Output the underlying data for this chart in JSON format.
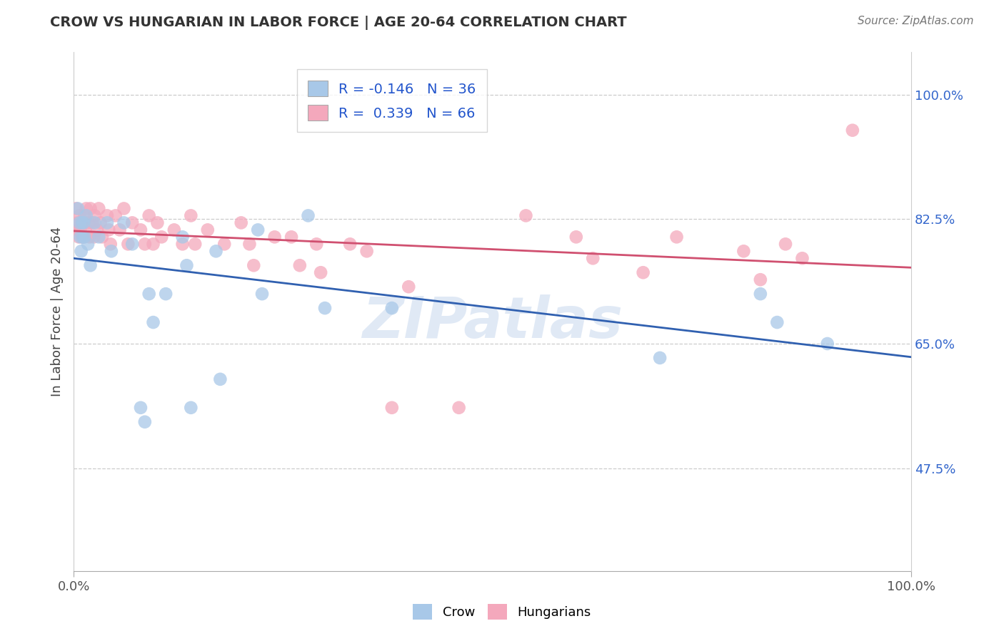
{
  "title": "CROW VS HUNGARIAN IN LABOR FORCE | AGE 20-64 CORRELATION CHART",
  "source": "Source: ZipAtlas.com",
  "ylabel": "In Labor Force | Age 20-64",
  "crow_R": "-0.146",
  "crow_N": "36",
  "hung_R": "0.339",
  "hung_N": "66",
  "crow_color": "#a8c8e8",
  "hung_color": "#f4a8bc",
  "crow_line_color": "#3060b0",
  "hung_line_color": "#d05070",
  "watermark": "ZIPatlas",
  "xlim": [
    0.0,
    1.0
  ],
  "ylim": [
    0.33,
    1.06
  ],
  "ytick_positions": [
    0.475,
    0.65,
    0.825,
    1.0
  ],
  "ytick_labels": [
    "47.5%",
    "65.0%",
    "82.5%",
    "100.0%"
  ],
  "crow_points": [
    [
      0.005,
      0.84
    ],
    [
      0.007,
      0.82
    ],
    [
      0.008,
      0.8
    ],
    [
      0.009,
      0.78
    ],
    [
      0.01,
      0.82
    ],
    [
      0.011,
      0.8
    ],
    [
      0.012,
      0.82
    ],
    [
      0.013,
      0.8
    ],
    [
      0.015,
      0.83
    ],
    [
      0.017,
      0.79
    ],
    [
      0.02,
      0.76
    ],
    [
      0.025,
      0.82
    ],
    [
      0.03,
      0.8
    ],
    [
      0.04,
      0.82
    ],
    [
      0.045,
      0.78
    ],
    [
      0.06,
      0.82
    ],
    [
      0.07,
      0.79
    ],
    [
      0.08,
      0.56
    ],
    [
      0.085,
      0.54
    ],
    [
      0.09,
      0.72
    ],
    [
      0.095,
      0.68
    ],
    [
      0.11,
      0.72
    ],
    [
      0.13,
      0.8
    ],
    [
      0.135,
      0.76
    ],
    [
      0.14,
      0.56
    ],
    [
      0.17,
      0.78
    ],
    [
      0.175,
      0.6
    ],
    [
      0.22,
      0.81
    ],
    [
      0.225,
      0.72
    ],
    [
      0.28,
      0.83
    ],
    [
      0.3,
      0.7
    ],
    [
      0.38,
      0.7
    ],
    [
      0.7,
      0.63
    ],
    [
      0.82,
      0.72
    ],
    [
      0.84,
      0.68
    ],
    [
      0.9,
      0.65
    ]
  ],
  "hung_points": [
    [
      0.003,
      0.84
    ],
    [
      0.004,
      0.82
    ],
    [
      0.005,
      0.81
    ],
    [
      0.006,
      0.8
    ],
    [
      0.007,
      0.83
    ],
    [
      0.008,
      0.81
    ],
    [
      0.009,
      0.82
    ],
    [
      0.01,
      0.8
    ],
    [
      0.011,
      0.82
    ],
    [
      0.012,
      0.8
    ],
    [
      0.013,
      0.83
    ],
    [
      0.014,
      0.81
    ],
    [
      0.015,
      0.84
    ],
    [
      0.017,
      0.82
    ],
    [
      0.019,
      0.8
    ],
    [
      0.02,
      0.84
    ],
    [
      0.022,
      0.82
    ],
    [
      0.024,
      0.8
    ],
    [
      0.025,
      0.83
    ],
    [
      0.028,
      0.81
    ],
    [
      0.03,
      0.84
    ],
    [
      0.032,
      0.82
    ],
    [
      0.034,
      0.8
    ],
    [
      0.04,
      0.83
    ],
    [
      0.042,
      0.81
    ],
    [
      0.044,
      0.79
    ],
    [
      0.05,
      0.83
    ],
    [
      0.055,
      0.81
    ],
    [
      0.06,
      0.84
    ],
    [
      0.065,
      0.79
    ],
    [
      0.07,
      0.82
    ],
    [
      0.08,
      0.81
    ],
    [
      0.085,
      0.79
    ],
    [
      0.09,
      0.83
    ],
    [
      0.095,
      0.79
    ],
    [
      0.1,
      0.82
    ],
    [
      0.105,
      0.8
    ],
    [
      0.12,
      0.81
    ],
    [
      0.13,
      0.79
    ],
    [
      0.14,
      0.83
    ],
    [
      0.145,
      0.79
    ],
    [
      0.16,
      0.81
    ],
    [
      0.18,
      0.79
    ],
    [
      0.2,
      0.82
    ],
    [
      0.21,
      0.79
    ],
    [
      0.215,
      0.76
    ],
    [
      0.24,
      0.8
    ],
    [
      0.26,
      0.8
    ],
    [
      0.27,
      0.76
    ],
    [
      0.29,
      0.79
    ],
    [
      0.295,
      0.75
    ],
    [
      0.33,
      0.79
    ],
    [
      0.35,
      0.78
    ],
    [
      0.38,
      0.56
    ],
    [
      0.4,
      0.73
    ],
    [
      0.46,
      0.56
    ],
    [
      0.54,
      0.83
    ],
    [
      0.6,
      0.8
    ],
    [
      0.62,
      0.77
    ],
    [
      0.68,
      0.75
    ],
    [
      0.72,
      0.8
    ],
    [
      0.8,
      0.78
    ],
    [
      0.82,
      0.74
    ],
    [
      0.85,
      0.79
    ],
    [
      0.87,
      0.77
    ],
    [
      0.93,
      0.95
    ]
  ]
}
